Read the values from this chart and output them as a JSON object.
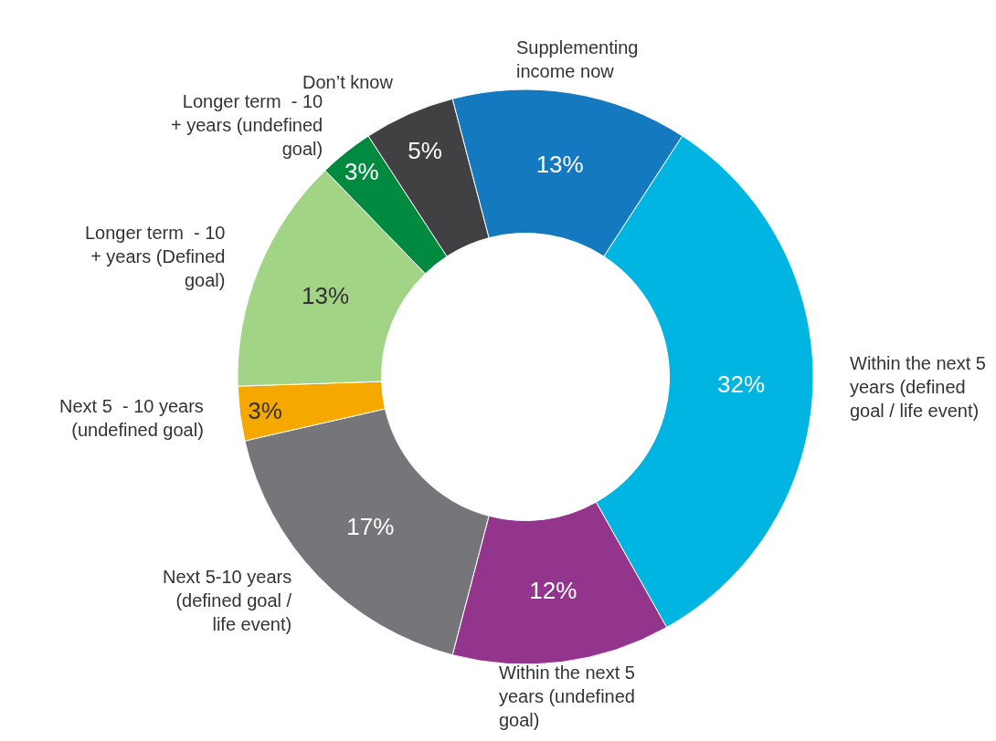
{
  "chart_data": {
    "type": "donut",
    "categories": [
      "Supplementing income now",
      "Within the next 5 years (defined goal / life event)",
      "Within the next 5 years (undefined goal)",
      "Next 5-10 years (defined goal / life event)",
      "Next 5  - 10 years (undefined goal)",
      "Longer term  - 10 + years (Defined goal)",
      "Longer term  - 10 + years (undefined goal)",
      "Don’t know"
    ],
    "values": [
      13,
      32,
      12,
      17,
      3,
      13,
      3,
      5
    ],
    "colors": [
      "#1579c0",
      "#00b5e2",
      "#93358d",
      "#76767a",
      "#f5a800",
      "#a2d485",
      "#008a3f",
      "#414143"
    ],
    "value_labels": [
      "13%",
      "32%",
      "12%",
      "17%",
      "3%",
      "13%",
      "3%",
      "5%"
    ]
  }
}
